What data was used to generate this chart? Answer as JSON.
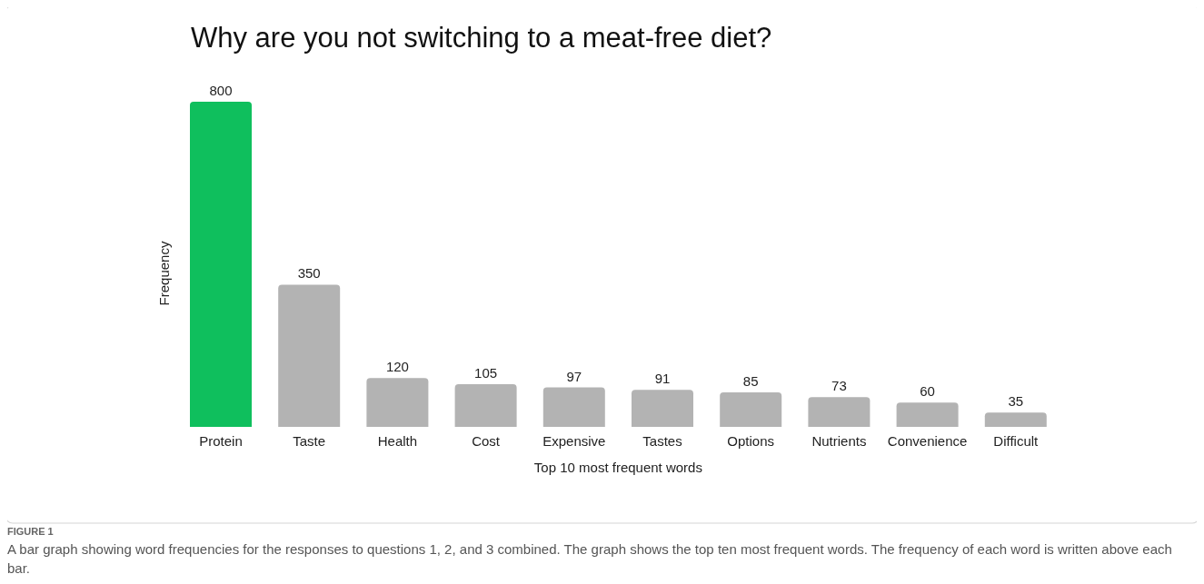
{
  "chart_data": {
    "type": "bar",
    "title": "Why are you not switching to a meat-free diet?",
    "xlabel": "Top 10 most frequent words",
    "ylabel": "Frequency",
    "categories": [
      "Protein",
      "Taste",
      "Health",
      "Cost",
      "Expensive",
      "Tastes",
      "Options",
      "Nutrients",
      "Convenience",
      "Difficult"
    ],
    "values": [
      800,
      350,
      120,
      105,
      97,
      91,
      85,
      73,
      60,
      35
    ],
    "colors": [
      "#0fbf5d",
      "#b3b3b3",
      "#b3b3b3",
      "#b3b3b3",
      "#b3b3b3",
      "#b3b3b3",
      "#b3b3b3",
      "#b3b3b3",
      "#b3b3b3",
      "#b3b3b3"
    ],
    "data_labels": true,
    "annotations": [
      "FIGURE 1",
      "A bar graph showing word frequencies for the responses to questions 1, 2, and 3 combined. The graph shows the top ten most frequent words. The frequency of each word is written above each bar."
    ]
  }
}
